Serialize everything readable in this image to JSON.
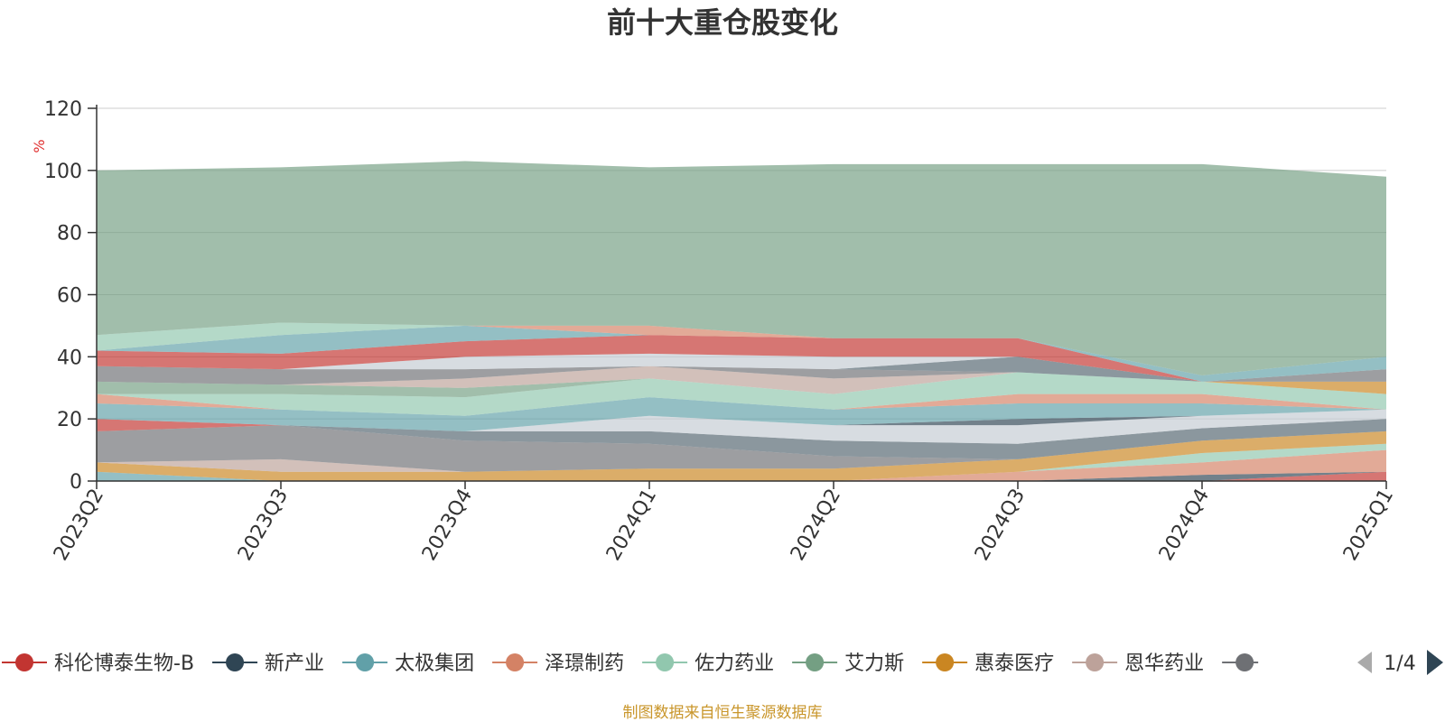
{
  "chart_data": {
    "type": "area",
    "stacked": true,
    "title": "前十大重仓股变化",
    "ylabel": "%",
    "ylim": [
      0,
      120
    ],
    "yticks": [
      "0",
      "20",
      "40",
      "60",
      "80",
      "100",
      "120"
    ],
    "grid": true,
    "legend_position": "bottom",
    "categories": [
      "2023Q2",
      "2023Q3",
      "2023Q4",
      "2024Q1",
      "2024Q2",
      "2024Q3",
      "2024Q4",
      "2025Q1"
    ],
    "series": [
      {
        "name": "科伦博泰生物-B",
        "color": "#c23531",
        "values": [
          0,
          0,
          0,
          0,
          0,
          0,
          0,
          3
        ]
      },
      {
        "name": "新产业",
        "color": "#2f4554",
        "values": [
          0,
          0,
          0,
          0,
          0,
          0,
          2,
          0
        ]
      },
      {
        "name": "太极集团",
        "color": "#61a0a8",
        "values": [
          3,
          0,
          0,
          0,
          0,
          0,
          0,
          0
        ]
      },
      {
        "name": "泽璟制药",
        "color": "#d48265",
        "values": [
          0,
          0,
          0,
          0,
          0,
          3,
          4,
          7
        ]
      },
      {
        "name": "佐力药业",
        "color": "#91c7ae",
        "values": [
          0,
          0,
          0,
          0,
          0,
          0,
          3,
          2
        ]
      },
      {
        "name": "艾力斯",
        "color": "#749f83",
        "values": [
          0,
          0,
          0,
          0,
          0,
          0,
          0,
          0
        ]
      },
      {
        "name": "惠泰医疗",
        "color": "#ca8622",
        "values": [
          3,
          3,
          3,
          4,
          4,
          4,
          4,
          4
        ]
      },
      {
        "name": "恩华药业",
        "color": "#bda29a",
        "values": [
          0,
          4,
          0,
          0,
          0,
          0,
          0,
          0
        ]
      },
      {
        "name": "",
        "color": "#6e7074",
        "values": [
          10,
          11,
          10,
          8,
          4,
          0,
          0,
          0
        ]
      },
      {
        "name": "",
        "color": "#546570",
        "values": [
          0,
          0,
          3,
          4,
          5,
          5,
          4,
          4
        ]
      },
      {
        "name": "",
        "color": "#c4ccd3",
        "values": [
          0,
          0,
          0,
          5,
          5,
          6,
          4,
          3
        ]
      },
      {
        "name": "",
        "color": "#2f4554",
        "values": [
          0,
          0,
          0,
          0,
          0,
          2,
          0,
          0
        ]
      },
      {
        "name": "",
        "color": "#c23531",
        "values": [
          4,
          0,
          0,
          0,
          0,
          0,
          0,
          0
        ]
      },
      {
        "name": "",
        "color": "#61a0a8",
        "values": [
          5,
          5,
          5,
          6,
          5,
          5,
          4,
          0
        ]
      },
      {
        "name": "",
        "color": "#d48265",
        "values": [
          3,
          0,
          0,
          0,
          0,
          3,
          3,
          0
        ]
      },
      {
        "name": "",
        "color": "#91c7ae",
        "values": [
          0,
          5,
          6,
          6,
          5,
          7,
          4,
          5
        ]
      },
      {
        "name": "",
        "color": "#749f83",
        "values": [
          4,
          3,
          3,
          0,
          0,
          0,
          0,
          0
        ]
      },
      {
        "name": "",
        "color": "#ca8622",
        "values": [
          0,
          0,
          0,
          0,
          0,
          0,
          0,
          4
        ]
      },
      {
        "name": "",
        "color": "#bda29a",
        "values": [
          0,
          0,
          3,
          4,
          5,
          0,
          0,
          0
        ]
      },
      {
        "name": "",
        "color": "#6e7074",
        "values": [
          5,
          5,
          3,
          0,
          3,
          0,
          0,
          4
        ]
      },
      {
        "name": "",
        "color": "#546570",
        "values": [
          0,
          0,
          0,
          0,
          0,
          5,
          0,
          0
        ]
      },
      {
        "name": "",
        "color": "#c4ccd3",
        "values": [
          0,
          0,
          4,
          4,
          4,
          0,
          0,
          0
        ]
      },
      {
        "name": "",
        "color": "#c23531",
        "values": [
          5,
          5,
          5,
          6,
          6,
          6,
          0,
          0
        ]
      },
      {
        "name": "",
        "color": "#61a0a8",
        "values": [
          0,
          6,
          5,
          0,
          0,
          0,
          2,
          4
        ]
      },
      {
        "name": "",
        "color": "#d48265",
        "values": [
          0,
          0,
          0,
          3,
          0,
          0,
          0,
          0
        ]
      },
      {
        "name": "",
        "color": "#91c7ae",
        "values": [
          5,
          4,
          0,
          0,
          0,
          0,
          0,
          0
        ]
      },
      {
        "name": "",
        "color": "#749f83",
        "values": [
          53,
          50,
          53,
          51,
          56,
          56,
          68,
          58
        ]
      }
    ]
  },
  "legend": {
    "items": [
      {
        "label": "科伦博泰生物-B",
        "color": "#c23531"
      },
      {
        "label": "新产业",
        "color": "#2f4554"
      },
      {
        "label": "太极集团",
        "color": "#61a0a8"
      },
      {
        "label": "泽璟制药",
        "color": "#d48265"
      },
      {
        "label": "佐力药业",
        "color": "#91c7ae"
      },
      {
        "label": "艾力斯",
        "color": "#749f83"
      },
      {
        "label": "惠泰医疗",
        "color": "#ca8622"
      },
      {
        "label": "恩华药业",
        "color": "#bda29a"
      }
    ],
    "overflow_color": "#6e7074",
    "page_indicator": "1/4",
    "prev_icon": "triangle-left-icon",
    "next_icon": "triangle-right-icon"
  },
  "source_note": "制图数据来自恒生聚源数据库",
  "source_color": "#c9962b"
}
